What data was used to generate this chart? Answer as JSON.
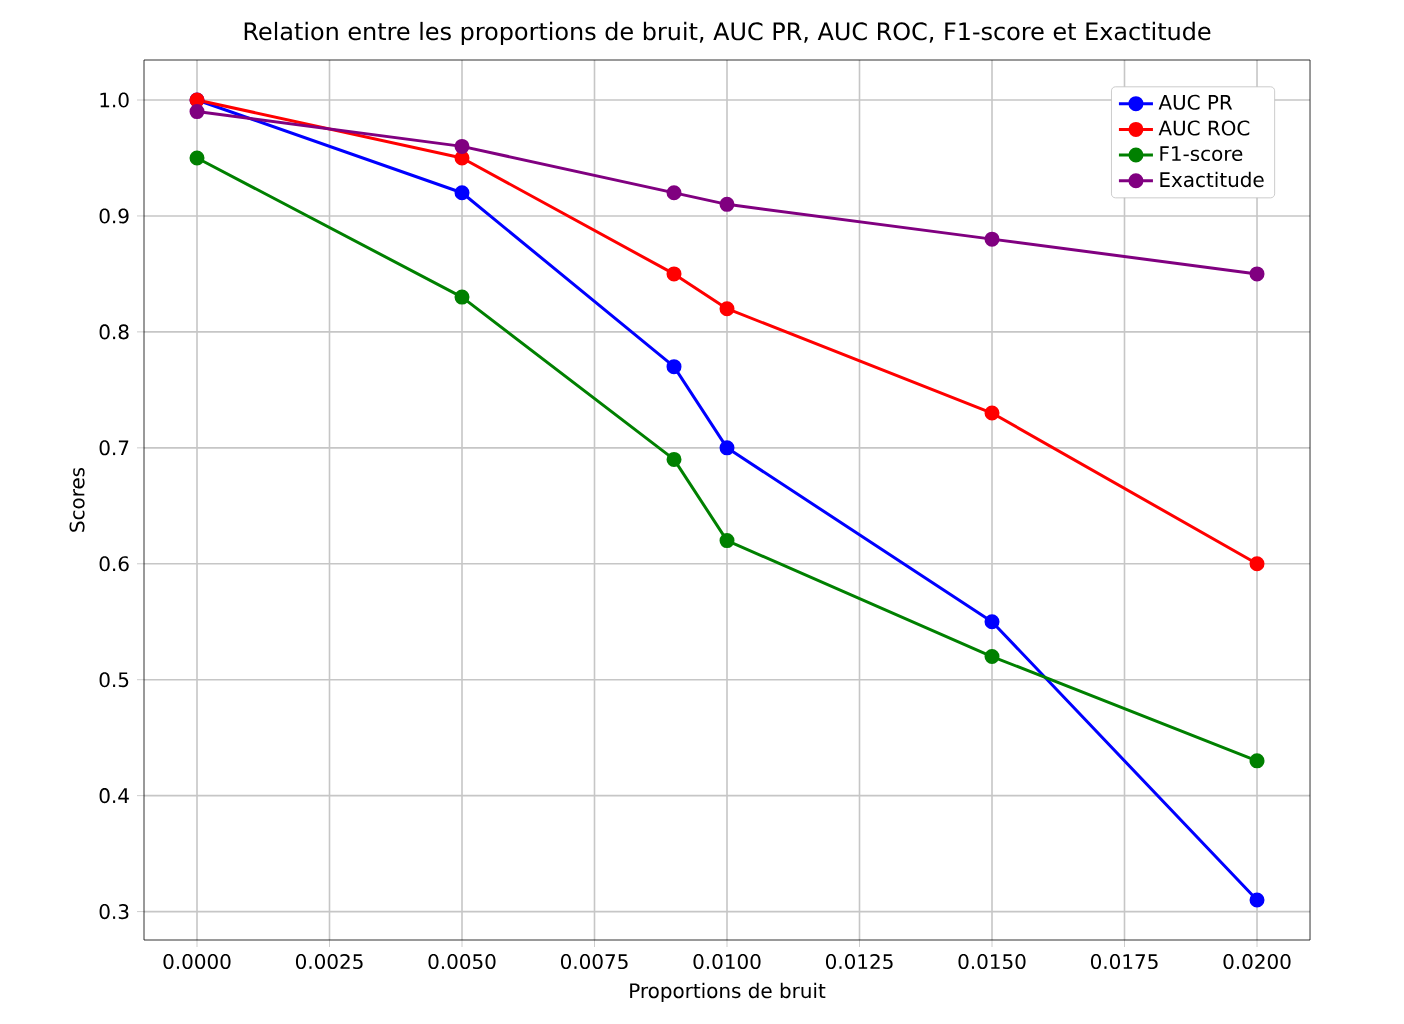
{
  "chart_data": {
    "type": "line",
    "title": "Relation entre les proportions de bruit, AUC PR, AUC ROC, F1-score et Exactitude",
    "xlabel": "Proportions de bruit",
    "ylabel": "Scores",
    "x": [
      0.0,
      0.005,
      0.009,
      0.01,
      0.015,
      0.02
    ],
    "series": [
      {
        "name": "AUC PR",
        "color": "#0000ff",
        "values": [
          1.0,
          0.92,
          0.77,
          0.7,
          0.55,
          0.31
        ]
      },
      {
        "name": "AUC ROC",
        "color": "#ff0000",
        "values": [
          1.0,
          0.95,
          0.85,
          0.82,
          0.73,
          0.6
        ]
      },
      {
        "name": "F1-score",
        "color": "#008000",
        "values": [
          0.95,
          0.83,
          0.69,
          0.62,
          0.52,
          0.43
        ]
      },
      {
        "name": "Exactitude",
        "color": "#800080",
        "values": [
          0.99,
          0.96,
          0.92,
          0.91,
          0.88,
          0.85
        ]
      }
    ],
    "xlim": [
      -0.001,
      0.021
    ],
    "ylim": [
      0.2755,
      1.0345
    ],
    "xticks": [
      {
        "value": 0.0,
        "label": "0.0000"
      },
      {
        "value": 0.0025,
        "label": "0.0025"
      },
      {
        "value": 0.005,
        "label": "0.0050"
      },
      {
        "value": 0.0075,
        "label": "0.0075"
      },
      {
        "value": 0.01,
        "label": "0.0100"
      },
      {
        "value": 0.0125,
        "label": "0.0125"
      },
      {
        "value": 0.015,
        "label": "0.0150"
      },
      {
        "value": 0.0175,
        "label": "0.0175"
      },
      {
        "value": 0.02,
        "label": "0.0200"
      }
    ],
    "yticks": [
      {
        "value": 0.3,
        "label": "0.3"
      },
      {
        "value": 0.4,
        "label": "0.4"
      },
      {
        "value": 0.5,
        "label": "0.5"
      },
      {
        "value": 0.6,
        "label": "0.6"
      },
      {
        "value": 0.7,
        "label": "0.7"
      },
      {
        "value": 0.8,
        "label": "0.8"
      },
      {
        "value": 0.9,
        "label": "0.9"
      },
      {
        "value": 1.0,
        "label": "1.0"
      }
    ],
    "grid": true,
    "legend": "top right",
    "marker": "circle",
    "line_style": "solid"
  }
}
